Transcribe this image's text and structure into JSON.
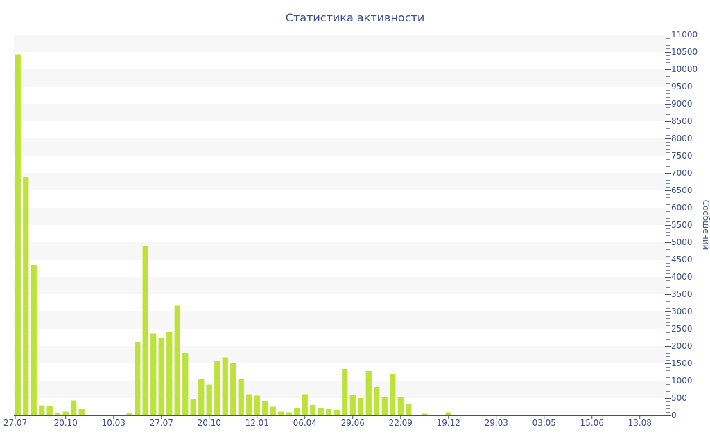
{
  "chart_data": {
    "type": "bar",
    "title": "Статистика активности",
    "xlabel": "",
    "ylabel": "Сообщений",
    "ylim": [
      0,
      11000
    ],
    "y_ticks": [
      0,
      500,
      1000,
      1500,
      2000,
      2500,
      3000,
      3500,
      4000,
      4500,
      5000,
      5500,
      6000,
      6500,
      7000,
      7500,
      8000,
      8500,
      9000,
      9500,
      10000,
      10500,
      11000
    ],
    "y_axis_position": "right",
    "grid": "alternating horizontal bands",
    "x_tick_labels": [
      {
        "label": "27.07",
        "index": 0
      },
      {
        "label": "20.10",
        "index": 6
      },
      {
        "label": "10.03",
        "index": 12
      },
      {
        "label": "27.07",
        "index": 18
      },
      {
        "label": "20.10",
        "index": 24
      },
      {
        "label": "12.01",
        "index": 30
      },
      {
        "label": "06.04",
        "index": 36
      },
      {
        "label": "29.06",
        "index": 42
      },
      {
        "label": "22.09",
        "index": 48
      },
      {
        "label": "19.12",
        "index": 54
      },
      {
        "label": "29.03",
        "index": 60
      },
      {
        "label": "03.05",
        "index": 66
      },
      {
        "label": "15.06",
        "index": 72
      },
      {
        "label": "13.08",
        "index": 78
      }
    ],
    "values": [
      10430,
      6880,
      4340,
      290,
      280,
      70,
      110,
      430,
      180,
      20,
      10,
      10,
      10,
      10,
      70,
      2120,
      4880,
      2370,
      2220,
      2420,
      3170,
      1800,
      470,
      1050,
      890,
      1580,
      1670,
      1520,
      1040,
      610,
      570,
      400,
      250,
      110,
      90,
      220,
      610,
      300,
      210,
      180,
      160,
      1340,
      580,
      500,
      1280,
      820,
      530,
      1190,
      540,
      340,
      20,
      50,
      10,
      10,
      90,
      10,
      10,
      10,
      10,
      10,
      10,
      10,
      10,
      10,
      10,
      10,
      10,
      10,
      10,
      10,
      10,
      10,
      10,
      10,
      10,
      10,
      10,
      10,
      10,
      10,
      10,
      10
    ],
    "colors": {
      "bar": "#bde23a",
      "text": "#3d4f8a",
      "band": "#f7f7f7",
      "axis": "#3d4f8a"
    }
  }
}
